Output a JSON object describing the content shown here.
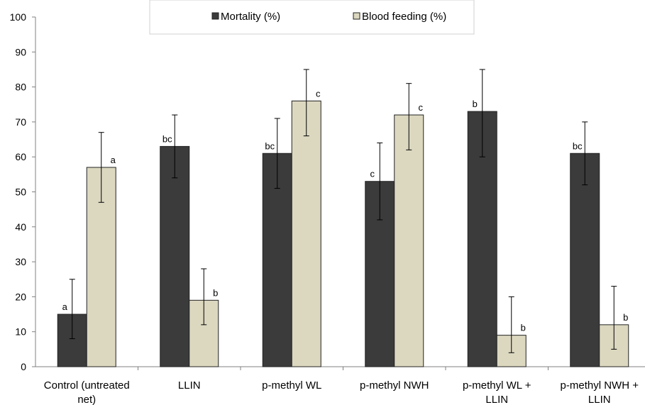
{
  "chart_data": {
    "type": "bar",
    "categories": [
      [
        "Control (untreated",
        "net)"
      ],
      [
        "LLIN"
      ],
      [
        "p-methyl  WL"
      ],
      [
        "p-methyl NWH"
      ],
      [
        "p-methyl WL +",
        "LLIN"
      ],
      [
        "p-methyl NWH +",
        "LLIN"
      ]
    ],
    "series": [
      {
        "name": "Mortality (%)",
        "color": "#3b3b3b",
        "values": [
          15,
          63,
          61,
          53,
          73,
          61
        ],
        "error_low": [
          8,
          54,
          51,
          42,
          60,
          52
        ],
        "error_high": [
          25,
          72,
          71,
          64,
          85,
          70
        ],
        "labels": [
          "a",
          "bc",
          "bc",
          "c",
          "b",
          "bc"
        ]
      },
      {
        "name": "Blood feeding (%)",
        "color": "#dcd8c0",
        "values": [
          57,
          19,
          76,
          72,
          9,
          12
        ],
        "error_low": [
          47,
          12,
          66,
          62,
          4,
          5
        ],
        "error_high": [
          67,
          28,
          85,
          81,
          20,
          23
        ],
        "labels": [
          "a",
          "b",
          "c",
          "c",
          "b",
          "b"
        ]
      }
    ],
    "ylim": [
      0,
      100
    ],
    "yticks": [
      0,
      10,
      20,
      30,
      40,
      50,
      60,
      70,
      80,
      90,
      100
    ],
    "legend_position": "top-center",
    "grid": false
  }
}
